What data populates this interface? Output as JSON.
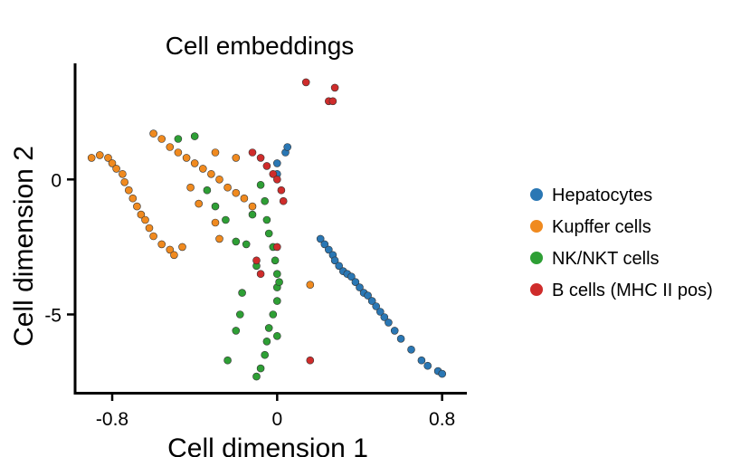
{
  "chart_data": {
    "type": "scatter",
    "title": "Cell embeddings",
    "xlabel": "Cell dimension 1",
    "ylabel": "Cell dimension 2",
    "xlim": [
      -0.98,
      0.92
    ],
    "ylim": [
      -7.9,
      4.3
    ],
    "xticks": [
      {
        "value": -0.8,
        "label": "-0.8"
      },
      {
        "value": 0,
        "label": "0"
      },
      {
        "value": 0.8,
        "label": "0.8"
      }
    ],
    "yticks": [
      {
        "value": 0,
        "label": "0"
      },
      {
        "value": -5,
        "label": "-5"
      }
    ],
    "grid": false,
    "legend_position": "right",
    "series": [
      {
        "name": "Hepatocytes",
        "color": "#2a77b4",
        "points": [
          [
            0.0,
            0.6
          ],
          [
            0.04,
            1.0
          ],
          [
            0.05,
            1.2
          ],
          [
            0.0,
            0.2
          ],
          [
            0.21,
            -2.2
          ],
          [
            0.23,
            -2.4
          ],
          [
            0.25,
            -2.6
          ],
          [
            0.27,
            -2.8
          ],
          [
            0.28,
            -3.0
          ],
          [
            0.3,
            -3.2
          ],
          [
            0.32,
            -3.4
          ],
          [
            0.34,
            -3.5
          ],
          [
            0.36,
            -3.6
          ],
          [
            0.38,
            -3.8
          ],
          [
            0.4,
            -4.0
          ],
          [
            0.42,
            -4.2
          ],
          [
            0.44,
            -4.3
          ],
          [
            0.46,
            -4.5
          ],
          [
            0.48,
            -4.7
          ],
          [
            0.5,
            -4.9
          ],
          [
            0.52,
            -5.1
          ],
          [
            0.54,
            -5.3
          ],
          [
            0.57,
            -5.6
          ],
          [
            0.6,
            -5.9
          ],
          [
            0.65,
            -6.3
          ],
          [
            0.7,
            -6.7
          ],
          [
            0.73,
            -6.9
          ],
          [
            0.78,
            -7.1
          ],
          [
            0.8,
            -7.2
          ]
        ]
      },
      {
        "name": "Kupffer cells",
        "color": "#f08a1f",
        "points": [
          [
            -0.9,
            0.8
          ],
          [
            -0.86,
            0.9
          ],
          [
            -0.82,
            0.8
          ],
          [
            -0.8,
            0.6
          ],
          [
            -0.78,
            0.4
          ],
          [
            -0.75,
            0.2
          ],
          [
            -0.74,
            -0.1
          ],
          [
            -0.72,
            -0.4
          ],
          [
            -0.7,
            -0.7
          ],
          [
            -0.68,
            -1.0
          ],
          [
            -0.66,
            -1.3
          ],
          [
            -0.64,
            -1.5
          ],
          [
            -0.62,
            -1.8
          ],
          [
            -0.6,
            -2.1
          ],
          [
            -0.56,
            -2.4
          ],
          [
            -0.52,
            -2.6
          ],
          [
            -0.5,
            -2.8
          ],
          [
            -0.46,
            -2.5
          ],
          [
            -0.6,
            1.7
          ],
          [
            -0.56,
            1.5
          ],
          [
            -0.52,
            1.2
          ],
          [
            -0.48,
            1.0
          ],
          [
            -0.44,
            0.8
          ],
          [
            -0.4,
            0.6
          ],
          [
            -0.36,
            0.4
          ],
          [
            -0.32,
            0.2
          ],
          [
            -0.28,
            0.0
          ],
          [
            -0.24,
            -0.3
          ],
          [
            -0.2,
            -0.5
          ],
          [
            -0.16,
            -0.7
          ],
          [
            -0.12,
            -1.0
          ],
          [
            -0.3,
            1.0
          ],
          [
            -0.2,
            0.8
          ],
          [
            -0.42,
            -0.3
          ],
          [
            -0.38,
            -0.9
          ],
          [
            -0.3,
            -1.6
          ],
          [
            -0.28,
            -2.2
          ],
          [
            0.16,
            -3.9
          ]
        ]
      },
      {
        "name": "NK/NKT cells",
        "color": "#2e9f35",
        "points": [
          [
            -0.48,
            1.5
          ],
          [
            -0.4,
            1.6
          ],
          [
            -0.34,
            -0.4
          ],
          [
            -0.3,
            -1.0
          ],
          [
            -0.25,
            -1.5
          ],
          [
            -0.2,
            -2.3
          ],
          [
            -0.15,
            -2.4
          ],
          [
            -0.08,
            -0.2
          ],
          [
            -0.06,
            -0.8
          ],
          [
            -0.05,
            -1.5
          ],
          [
            -0.04,
            -2.0
          ],
          [
            -0.02,
            -2.5
          ],
          [
            -0.01,
            -3.0
          ],
          [
            0.0,
            -3.5
          ],
          [
            0.0,
            -4.0
          ],
          [
            0.0,
            -4.5
          ],
          [
            -0.02,
            -5.0
          ],
          [
            -0.04,
            -5.5
          ],
          [
            -0.05,
            -6.0
          ],
          [
            -0.06,
            -6.5
          ],
          [
            -0.08,
            -7.0
          ],
          [
            -0.1,
            -7.3
          ],
          [
            -0.18,
            -5.0
          ],
          [
            -0.17,
            -4.2
          ],
          [
            -0.2,
            -5.6
          ],
          [
            -0.24,
            -6.7
          ],
          [
            -0.12,
            -1.3
          ],
          [
            -0.1,
            -3.2
          ],
          [
            0.01,
            -3.8
          ],
          [
            0.0,
            -5.8
          ]
        ]
      },
      {
        "name": "B cells (MHC II pos)",
        "color": "#cf2c2b",
        "points": [
          [
            0.14,
            3.6
          ],
          [
            0.28,
            3.4
          ],
          [
            0.25,
            2.9
          ],
          [
            0.27,
            2.9
          ],
          [
            -0.12,
            1.0
          ],
          [
            -0.08,
            0.8
          ],
          [
            -0.05,
            0.5
          ],
          [
            -0.02,
            0.2
          ],
          [
            0.0,
            0.0
          ],
          [
            0.02,
            -0.4
          ],
          [
            0.03,
            -0.8
          ],
          [
            -0.1,
            -3.0
          ],
          [
            -0.08,
            -3.5
          ],
          [
            0.0,
            -2.5
          ],
          [
            0.16,
            -6.7
          ]
        ]
      }
    ]
  }
}
